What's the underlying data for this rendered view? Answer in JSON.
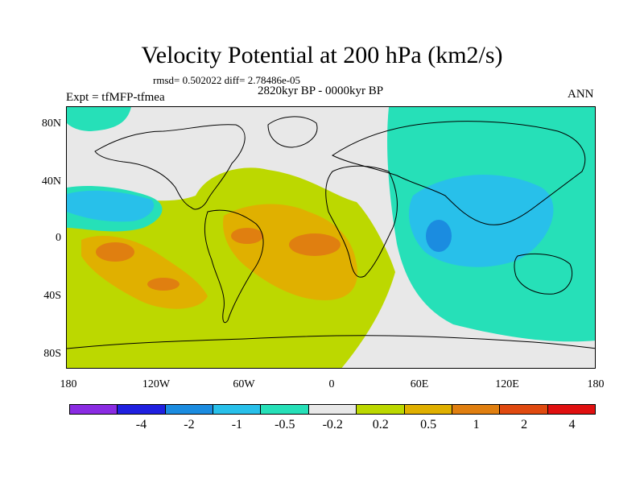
{
  "title": "Velocity Potential at 200 hPa (km2/s)",
  "stats": "rmsd= 0.502022 diff= 2.78486e-05",
  "period": "2820kyr BP - 0000kyr BP",
  "experiment": "Expt = tfMFP-tfmea",
  "season": "ANN",
  "axes": {
    "y_ticks": [
      "80N",
      "40N",
      "0",
      "40S",
      "80S"
    ],
    "x_ticks": [
      "180",
      "120W",
      "60W",
      "0",
      "60E",
      "120E",
      "180"
    ]
  },
  "colorbar": {
    "colors": [
      "#8a2be2",
      "#2020e0",
      "#1b8ce0",
      "#28c0ea",
      "#26e0b8",
      "#e8e8e8",
      "#bcd800",
      "#e0b000",
      "#e07f10",
      "#e04a10",
      "#e01010"
    ],
    "labels": [
      "-4",
      "-2",
      "-1",
      "-0.5",
      "-0.2",
      "0.2",
      "0.5",
      "1",
      "2",
      "4"
    ]
  },
  "map_regions": {
    "neutral_fill": "#e8e8e8"
  }
}
